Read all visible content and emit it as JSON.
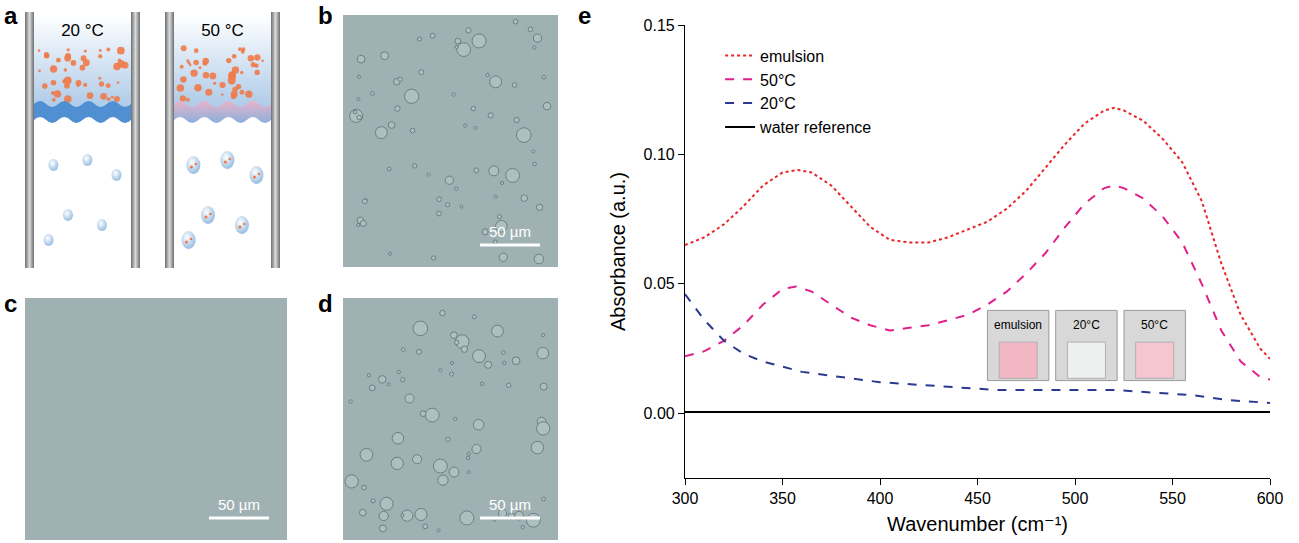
{
  "panels": {
    "a": {
      "label": "a",
      "tubes": [
        "20 °C",
        "50 °C"
      ]
    },
    "b": {
      "label": "b",
      "scale_bar": "50 µm"
    },
    "c": {
      "label": "c",
      "scale_bar": "50 µm"
    },
    "d": {
      "label": "d",
      "scale_bar": "50 µm"
    }
  },
  "chart_data": {
    "type": "line",
    "panel_label": "e",
    "x_label": "Wavenumber (cm⁻¹)",
    "y_label": "Absorbance (a.u.)",
    "xlim": [
      300,
      600
    ],
    "xticks": [
      300,
      350,
      400,
      450,
      500,
      550,
      600
    ],
    "ylim": [
      -0.025,
      0.15
    ],
    "yticks": [
      {
        "value": 0,
        "label": "0.00"
      },
      0.05,
      {
        "value": 0.1,
        "label": "0.10"
      },
      0.15
    ],
    "grid": false,
    "legend": "upper left",
    "series": [
      {
        "name": "emulsion",
        "color": "#e8262a",
        "line_style": "dotted",
        "x": [
          300,
          310,
          320,
          330,
          340,
          350,
          358,
          365,
          375,
          385,
          395,
          405,
          415,
          425,
          435,
          445,
          455,
          465,
          475,
          485,
          495,
          505,
          515,
          520,
          525,
          535,
          545,
          555,
          565,
          575,
          585,
          595,
          600
        ],
        "values": [
          0.065,
          0.068,
          0.073,
          0.08,
          0.088,
          0.093,
          0.094,
          0.093,
          0.088,
          0.08,
          0.072,
          0.067,
          0.066,
          0.066,
          0.068,
          0.071,
          0.074,
          0.079,
          0.086,
          0.095,
          0.104,
          0.112,
          0.117,
          0.118,
          0.117,
          0.113,
          0.106,
          0.097,
          0.082,
          0.058,
          0.038,
          0.025,
          0.021
        ]
      },
      {
        "name": "50°C",
        "color": "#e0208a",
        "line_style": "dashed",
        "x": [
          300,
          310,
          320,
          330,
          340,
          350,
          357,
          365,
          375,
          385,
          395,
          405,
          415,
          425,
          435,
          445,
          455,
          465,
          475,
          485,
          495,
          505,
          515,
          520,
          525,
          535,
          545,
          555,
          565,
          575,
          585,
          595,
          600
        ],
        "values": [
          0.022,
          0.024,
          0.028,
          0.034,
          0.042,
          0.048,
          0.049,
          0.047,
          0.042,
          0.037,
          0.034,
          0.032,
          0.033,
          0.034,
          0.036,
          0.038,
          0.042,
          0.047,
          0.054,
          0.062,
          0.072,
          0.081,
          0.087,
          0.088,
          0.087,
          0.083,
          0.076,
          0.066,
          0.05,
          0.032,
          0.02,
          0.014,
          0.013
        ]
      },
      {
        "name": "20°C",
        "color": "#2b3990",
        "line_style": "dashed",
        "x": [
          300,
          310,
          320,
          330,
          340,
          350,
          360,
          380,
          400,
          420,
          440,
          460,
          480,
          500,
          520,
          540,
          560,
          580,
          600
        ],
        "values": [
          0.046,
          0.036,
          0.028,
          0.023,
          0.02,
          0.018,
          0.016,
          0.014,
          0.012,
          0.011,
          0.01,
          0.009,
          0.009,
          0.009,
          0.009,
          0.008,
          0.007,
          0.005,
          0.004
        ]
      },
      {
        "name": "water reference",
        "color": "#000000",
        "line_style": "solid",
        "x": [
          300,
          450,
          600
        ],
        "values": [
          0.0005,
          0.0005,
          0.0005
        ]
      }
    ],
    "annotations": [
      "emulsion",
      "20°C",
      "50°C"
    ]
  }
}
